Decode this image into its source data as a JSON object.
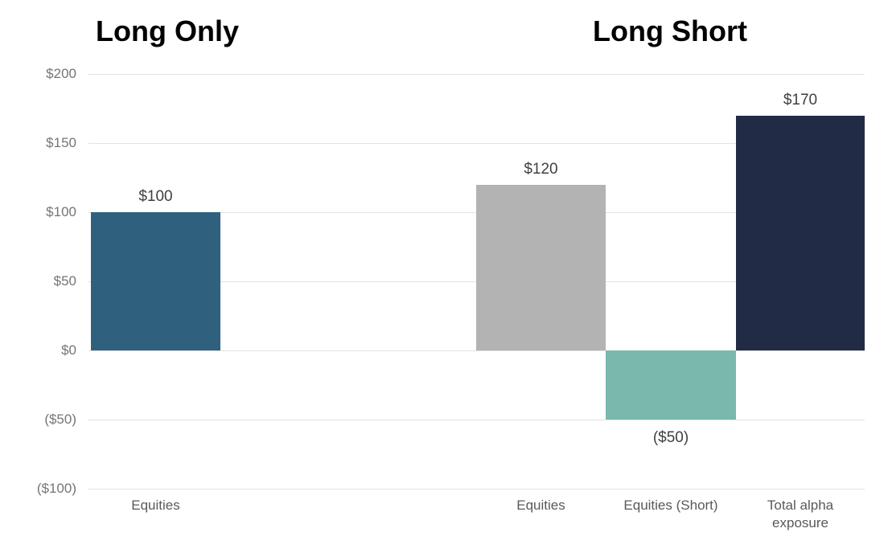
{
  "chart_data": {
    "type": "bar",
    "panels": [
      {
        "title": "Long Only",
        "bars": [
          {
            "category": "Equities",
            "value": 100,
            "value_label": "$100",
            "color": "#2F617F"
          }
        ]
      },
      {
        "title": "Long Short",
        "bars": [
          {
            "category": "Equities",
            "value": 120,
            "value_label": "$120",
            "color": "#B3B3B3"
          },
          {
            "category": "Equities (Short)",
            "value": -50,
            "value_label": "($50)",
            "color": "#7AB8AD"
          },
          {
            "category": "Total alpha exposure",
            "value": 170,
            "value_label": "$170",
            "color": "#222B45"
          }
        ]
      }
    ],
    "y_axis": {
      "min": -100,
      "max": 200,
      "step": 50,
      "tick_labels": [
        "$200",
        "$150",
        "$100",
        "$50",
        "$0",
        "($50)",
        "($100)"
      ],
      "tick_values": [
        200,
        150,
        100,
        50,
        0,
        -50,
        -100
      ]
    },
    "grid": true,
    "legend": false,
    "styles": {
      "grid_color": "#e2e2e2",
      "tick_color": "#757575",
      "value_label_color": "#404040",
      "category_label_color": "#595959",
      "title_color": "#000000",
      "background": "#ffffff"
    }
  }
}
